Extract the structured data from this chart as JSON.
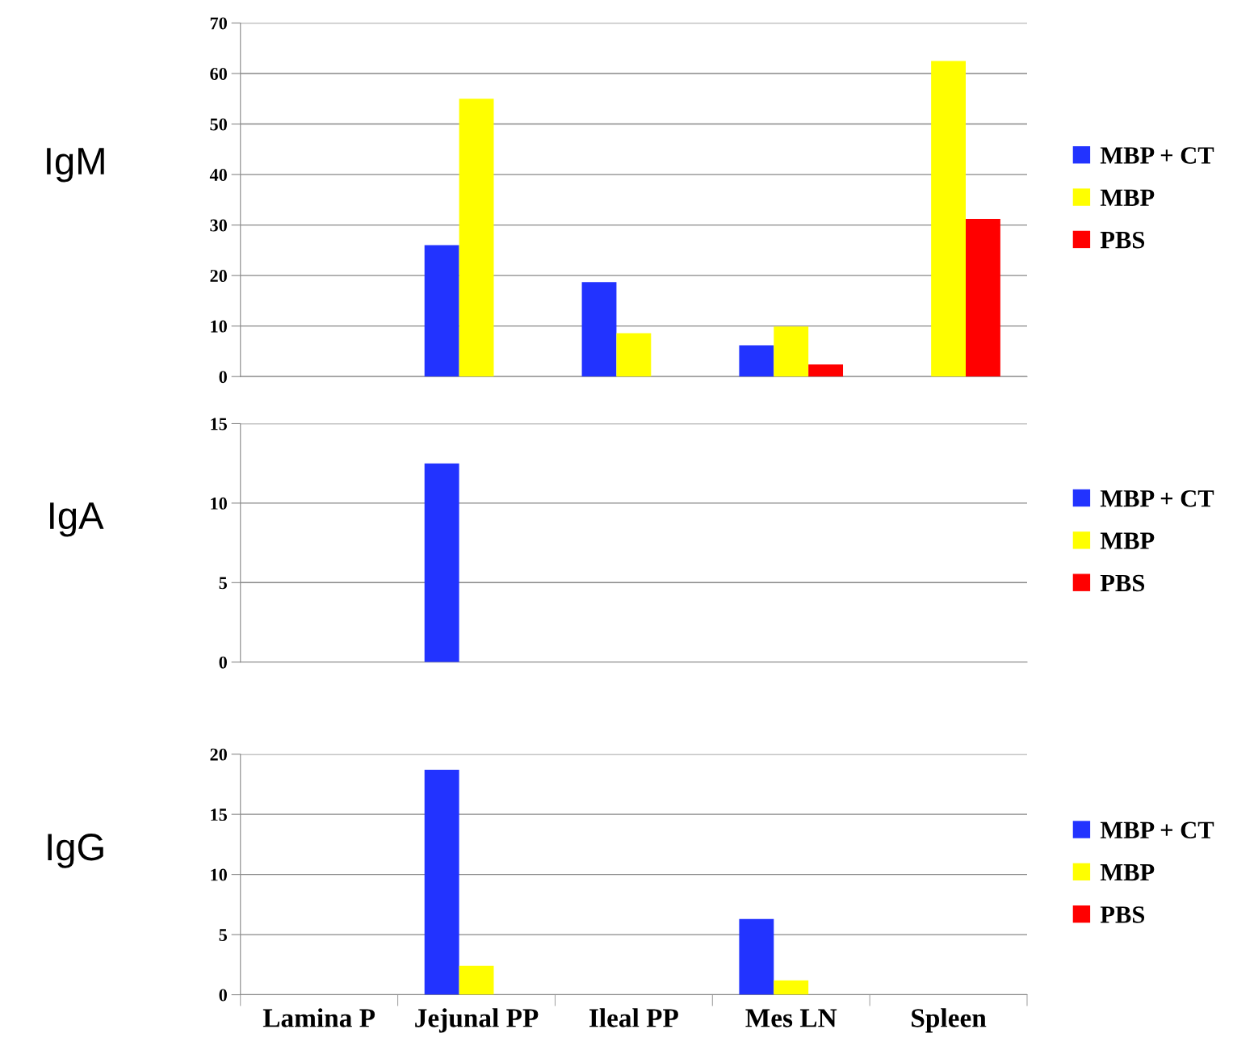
{
  "chart_data": [
    {
      "type": "bar",
      "ylabel": "IgM",
      "categories": [
        null,
        null,
        null,
        null,
        null
      ],
      "ylim": [
        0,
        70
      ],
      "yticks": [
        0,
        10,
        20,
        30,
        40,
        50,
        60,
        70
      ],
      "grid": "y",
      "legend": "right",
      "tick_labels": "y",
      "series": [
        {
          "name": "MBP + CT",
          "color": "#2233ff",
          "values": [
            null,
            26.0,
            18.7,
            6.2,
            null
          ]
        },
        {
          "name": "MBP",
          "color": "#ffff00",
          "values": [
            null,
            55.0,
            8.6,
            9.9,
            62.5
          ]
        },
        {
          "name": "PBS",
          "color": "#ff0000",
          "values": [
            null,
            null,
            null,
            2.4,
            31.2
          ]
        }
      ]
    },
    {
      "type": "bar",
      "ylabel": "IgA",
      "categories": [
        null,
        null,
        null,
        null,
        null
      ],
      "ylim": [
        0,
        15
      ],
      "yticks": [
        0,
        5,
        10,
        15
      ],
      "grid": "y",
      "legend": "right",
      "tick_labels": "y",
      "series": [
        {
          "name": "MBP + CT",
          "color": "#2233ff",
          "values": [
            null,
            12.5,
            null,
            null,
            null
          ]
        },
        {
          "name": "MBP",
          "color": "#ffff00",
          "values": [
            null,
            null,
            null,
            null,
            null
          ]
        },
        {
          "name": "PBS",
          "color": "#ff0000",
          "values": [
            null,
            null,
            null,
            null,
            null
          ]
        }
      ]
    },
    {
      "type": "bar",
      "ylabel": "IgG",
      "categories": [
        "Lamina P",
        "Jejunal PP",
        "Ileal PP",
        "Mes LN",
        "Spleen"
      ],
      "ylim": [
        0,
        20
      ],
      "yticks": [
        0,
        5,
        10,
        15,
        20
      ],
      "grid": "y",
      "legend": "right",
      "series": [
        {
          "name": "MBP + CT",
          "color": "#2233ff",
          "values": [
            null,
            18.7,
            null,
            6.3,
            null
          ]
        },
        {
          "name": "MBP",
          "color": "#ffff00",
          "values": [
            null,
            2.4,
            null,
            1.2,
            null
          ]
        },
        {
          "name": "PBS",
          "color": "#ff0000",
          "values": [
            null,
            null,
            null,
            null,
            null
          ]
        }
      ]
    }
  ]
}
